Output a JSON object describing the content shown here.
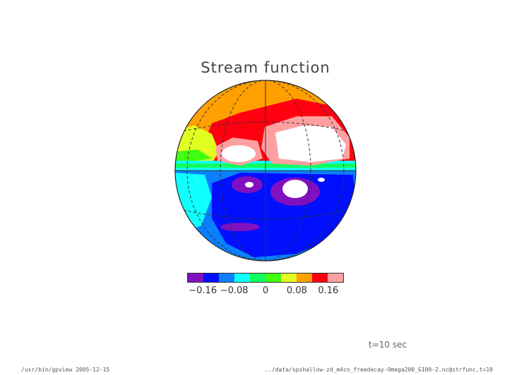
{
  "title": "Stream function",
  "colorbar": {
    "levels": [
      -0.2,
      -0.16,
      -0.12,
      -0.08,
      -0.04,
      0,
      0.04,
      0.08,
      0.12,
      0.16,
      0.2
    ],
    "colors": [
      "#8010c0",
      "#0010ff",
      "#0a80ff",
      "#10ffff",
      "#10ff60",
      "#40ff10",
      "#e0ff20",
      "#ffa000",
      "#ff0010",
      "#ffa0a0"
    ],
    "tick_labels": [
      "−0.16",
      "−0.08",
      "0",
      "0.08",
      "0.16"
    ]
  },
  "time_label": "t=10 sec",
  "footer": {
    "left": "/usr/bin/gpview  2005-12-15",
    "right": "../data/spshallow-zd_m4cn_freedecay-Omega200_G100-2.nc@strfunc,t=10"
  }
}
